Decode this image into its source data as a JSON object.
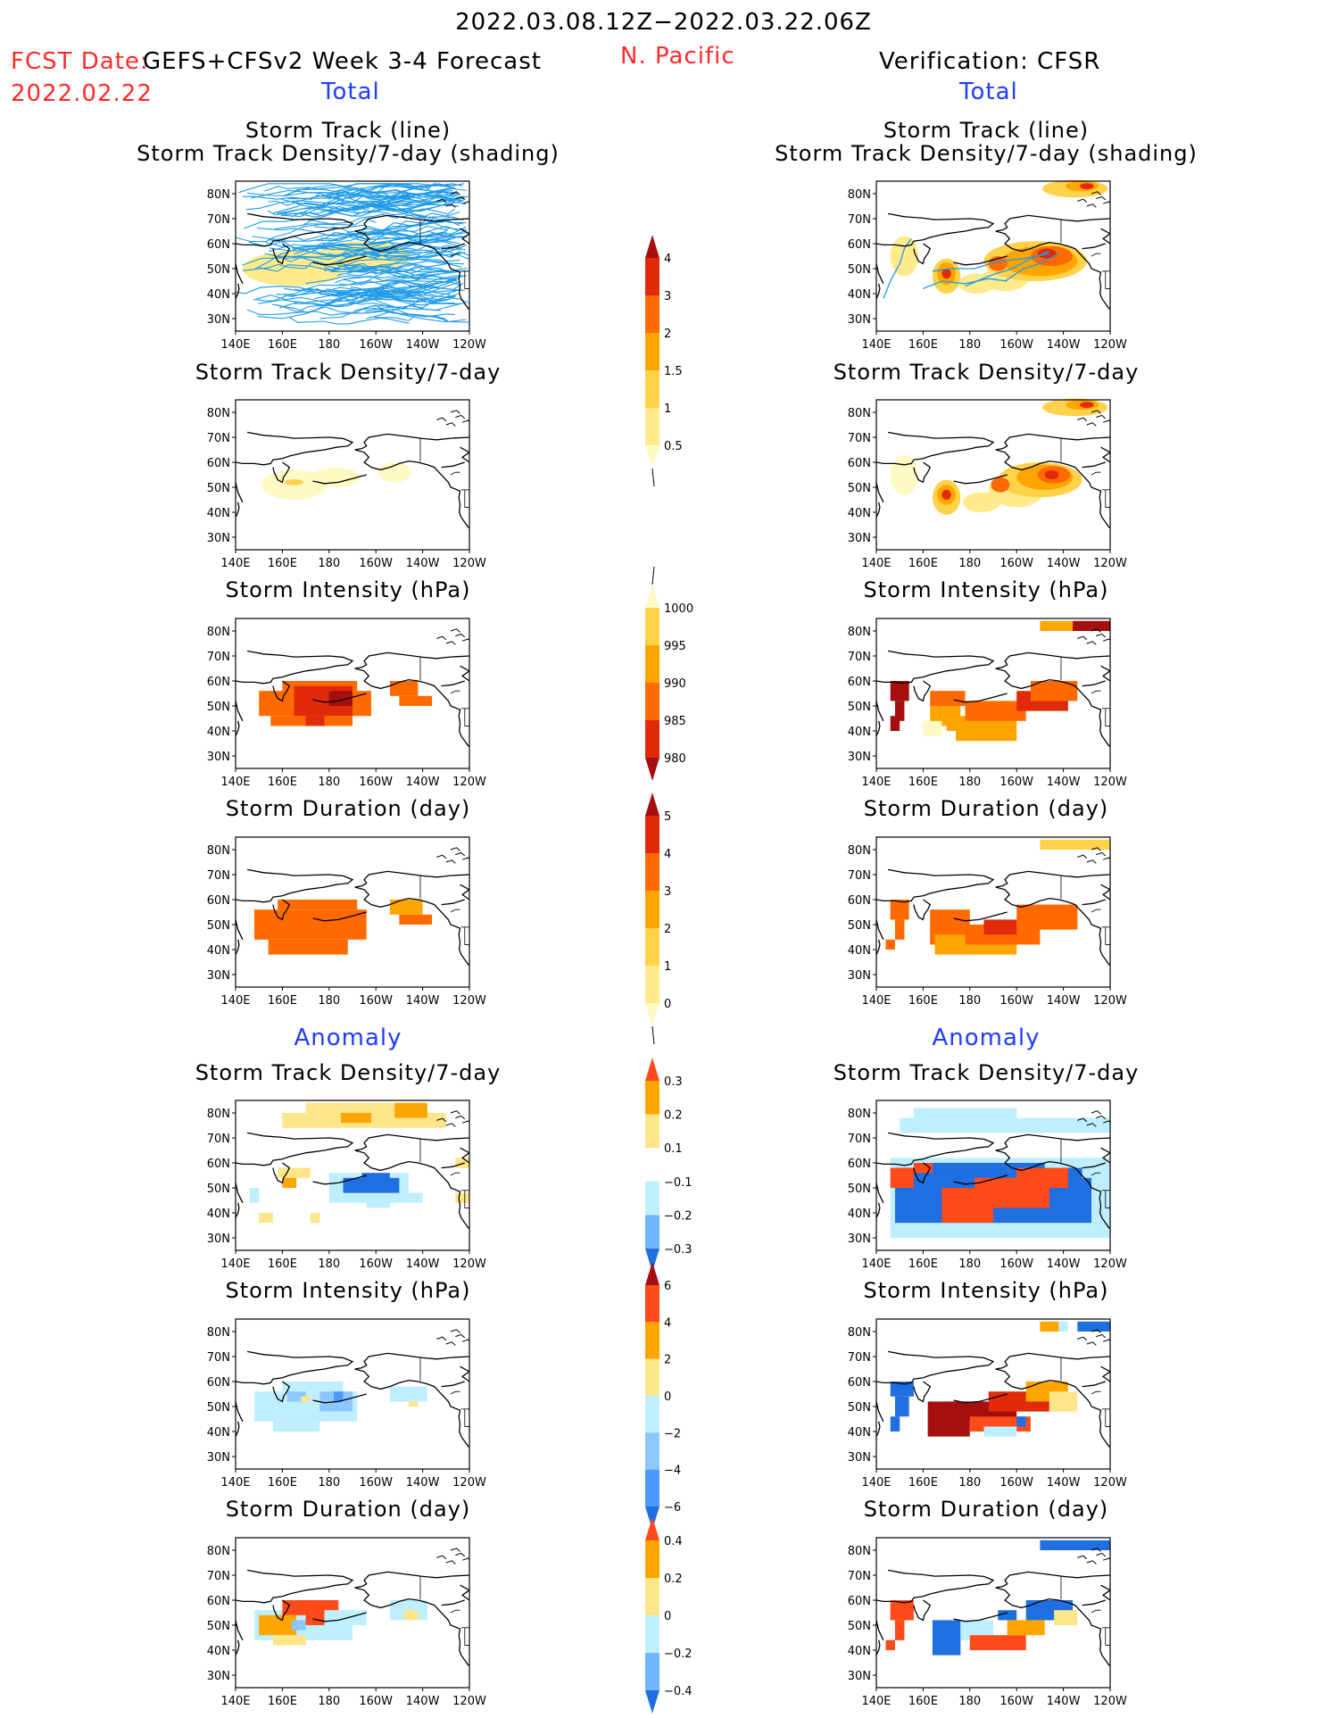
{
  "header": {
    "period": "2022.03.08.12Z−2022.03.22.06Z",
    "fcst_date_label": "FCST Date:",
    "fcst_date": "2022.02.22",
    "model": "GEFS+CFSv2 Week 3-4 Forecast",
    "region": "N. Pacific",
    "verification": "Verification: CFSR",
    "total_label": "Total",
    "anomaly_label": "Anomaly"
  },
  "map": {
    "lat_ticks": [
      "80N",
      "70N",
      "60N",
      "50N",
      "40N",
      "30N"
    ],
    "lon_ticks": [
      "140E",
      "160E",
      "180",
      "160W",
      "140W",
      "120W"
    ]
  },
  "panel_titles": {
    "track_line": "Storm Track (line)",
    "track_shading": "Storm Track Density/7-day (shading)",
    "density": "Storm Track Density/7-day",
    "intensity": "Storm Intensity (hPa)",
    "duration": "Storm Duration (day)"
  },
  "colorbars": [
    {
      "id": "density_total",
      "labels": [
        "4",
        "3",
        "2",
        "1.5",
        "1",
        "0.5"
      ],
      "colors": [
        "#a50f0f",
        "#e02a0a",
        "#ff6a00",
        "#ffa500",
        "#ffd24a",
        "#ffeb8c",
        "#fff9c4"
      ]
    },
    {
      "id": "intensity_total",
      "labels": [
        "1000",
        "995",
        "990",
        "985",
        "980"
      ],
      "colors": [
        "#fff9c4",
        "#ffd24a",
        "#ffa500",
        "#ff6a00",
        "#e02a0a",
        "#a50f0f"
      ]
    },
    {
      "id": "duration_total",
      "labels": [
        "5",
        "4",
        "3",
        "2",
        "1",
        "0"
      ],
      "colors": [
        "#a50f0f",
        "#e02a0a",
        "#ff6a00",
        "#ffa500",
        "#ffd24a",
        "#ffeb8c",
        "#fff9c4"
      ]
    },
    {
      "id": "density_anom",
      "labels": [
        "0.3",
        "0.2",
        "0.1",
        "−0.1",
        "−0.2",
        "−0.3"
      ],
      "colors": [
        "#ff4b1a",
        "#ffa500",
        "#ffe58a",
        "#ffffff",
        "#bfefff",
        "#6fb6ff",
        "#1f6fe0"
      ]
    },
    {
      "id": "intensity_anom",
      "labels": [
        "6",
        "4",
        "2",
        "0",
        "−2",
        "−4",
        "−6"
      ],
      "colors": [
        "#a50f0f",
        "#ff4b1a",
        "#ffa500",
        "#ffe58a",
        "#bfefff",
        "#8cc8ff",
        "#4b9bff",
        "#1f6fe0"
      ]
    },
    {
      "id": "duration_anom",
      "labels": [
        "0.4",
        "0.2",
        "0",
        "−0.2",
        "−0.4"
      ],
      "colors": [
        "#ff4b1a",
        "#ffa500",
        "#ffe58a",
        "#bfefff",
        "#6fb6ff",
        "#1f6fe0"
      ]
    }
  ],
  "chart_data": [
    {
      "type": "heatmap",
      "title": "Storm Track (line) / Storm Track Density/7-day (shading)",
      "side": "forecast",
      "field": "track_lines"
    },
    {
      "type": "heatmap",
      "title": "Storm Track (line) / Storm Track Density/7-day (shading)",
      "side": "verification",
      "field": "track_density"
    },
    {
      "type": "heatmap",
      "title": "Storm Track Density/7-day",
      "side": "forecast",
      "field": "density"
    },
    {
      "type": "heatmap",
      "title": "Storm Track Density/7-day",
      "side": "verification",
      "field": "density"
    },
    {
      "type": "heatmap",
      "title": "Storm Intensity (hPa)",
      "side": "forecast",
      "field": "intensity"
    },
    {
      "type": "heatmap",
      "title": "Storm Intensity (hPa)",
      "side": "verification",
      "field": "intensity"
    },
    {
      "type": "heatmap",
      "title": "Storm Duration (day)",
      "side": "forecast",
      "field": "duration"
    },
    {
      "type": "heatmap",
      "title": "Storm Duration (day)",
      "side": "verification",
      "field": "duration"
    },
    {
      "type": "heatmap",
      "title": "Storm Track Density/7-day",
      "side": "forecast",
      "field": "density_anomaly"
    },
    {
      "type": "heatmap",
      "title": "Storm Track Density/7-day",
      "side": "verification",
      "field": "density_anomaly"
    },
    {
      "type": "heatmap",
      "title": "Storm Intensity (hPa)",
      "side": "forecast",
      "field": "intensity_anomaly"
    },
    {
      "type": "heatmap",
      "title": "Storm Intensity (hPa)",
      "side": "verification",
      "field": "intensity_anomaly"
    },
    {
      "type": "heatmap",
      "title": "Storm Duration (day)",
      "side": "forecast",
      "field": "duration_anomaly"
    },
    {
      "type": "heatmap",
      "title": "Storm Duration (day)",
      "side": "verification",
      "field": "duration_anomaly"
    }
  ]
}
